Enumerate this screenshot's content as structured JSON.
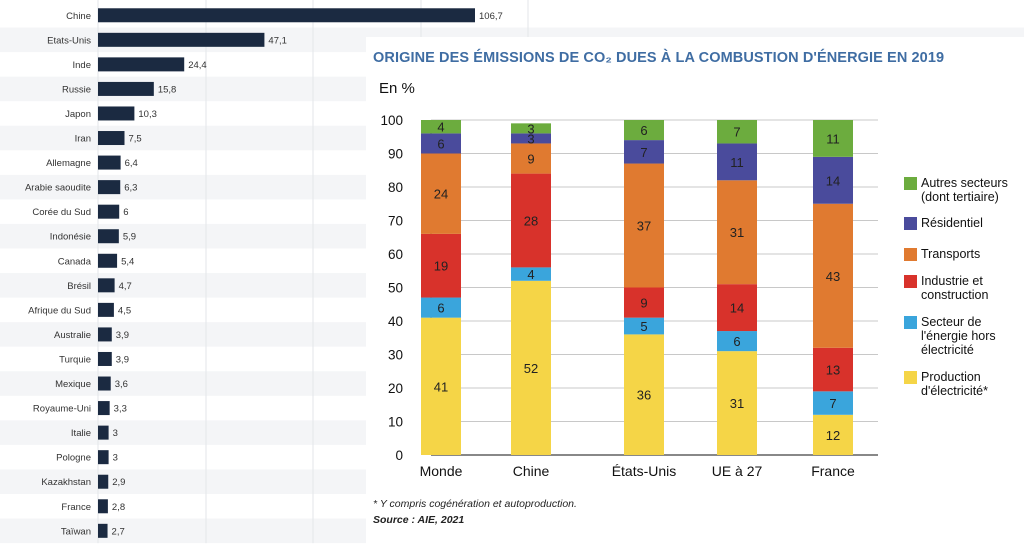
{
  "chart_data": [
    {
      "type": "bar",
      "orientation": "horizontal",
      "categories": [
        "Chine",
        "Etats-Unis",
        "Inde",
        "Russie",
        "Japon",
        "Iran",
        "Allemagne",
        "Arabie saoudite",
        "Corée du Sud",
        "Indonésie",
        "Canada",
        "Brésil",
        "Afrique du Sud",
        "Australie",
        "Turquie",
        "Mexique",
        "Royaume-Uni",
        "Italie",
        "Pologne",
        "Kazakhstan",
        "France",
        "Taïwan"
      ],
      "values": [
        106.7,
        47.1,
        24.4,
        15.8,
        10.3,
        7.5,
        6.4,
        6.3,
        6,
        5.9,
        5.4,
        4.7,
        4.5,
        3.9,
        3.9,
        3.6,
        3.3,
        3,
        3,
        2.9,
        2.8,
        2.7
      ],
      "value_labels": [
        "106,7",
        "47,1",
        "24,4",
        "15,8",
        "10,3",
        "7,5",
        "6,4",
        "6,3",
        "6",
        "5,9",
        "5,4",
        "4,7",
        "4,5",
        "3,9",
        "3,9",
        "3,6",
        "3,3",
        "3",
        "3",
        "2,9",
        "2,8",
        "2,7"
      ],
      "bar_color": "#1b2a41",
      "grid": true
    },
    {
      "type": "bar",
      "stacked": true,
      "title": "ORIGINE DES ÉMISSIONS DE CO₂ DUES À LA COMBUSTION D'ÉNERGIE EN 2019",
      "ylabel": "En %",
      "ylim": [
        0,
        100
      ],
      "yticks": [
        0,
        10,
        20,
        30,
        40,
        50,
        60,
        70,
        80,
        90,
        100
      ],
      "categories": [
        "Monde",
        "Chine",
        "États-Unis",
        "UE à 27",
        "France"
      ],
      "series": [
        {
          "name": "Production d'électricité*",
          "color": "#f5d547",
          "values": [
            41,
            52,
            36,
            31,
            12
          ]
        },
        {
          "name": "Secteur de l'énergie hors électricité",
          "color": "#3aa5dc",
          "values": [
            6,
            4,
            5,
            6,
            7
          ]
        },
        {
          "name": "Industrie et construction",
          "color": "#d8322b",
          "values": [
            19,
            28,
            9,
            14,
            13
          ]
        },
        {
          "name": "Transports",
          "color": "#e07a30",
          "values": [
            24,
            9,
            37,
            31,
            43
          ]
        },
        {
          "name": "Résidentiel",
          "color": "#4a4b9c",
          "values": [
            6,
            3,
            7,
            11,
            14
          ]
        },
        {
          "name": "Autres secteurs (dont tertiaire)",
          "color": "#6cac3e",
          "values": [
            4,
            3,
            6,
            7,
            11
          ]
        }
      ],
      "legend_position": "right",
      "footnote": "* Y compris cogénération et autoproduction.",
      "source": "Source : AIE, 2021"
    }
  ],
  "legend": [
    {
      "label": "Autres secteurs (dont tertiaire)",
      "color": "#6cac3e"
    },
    {
      "label": "Résidentiel",
      "color": "#4a4b9c"
    },
    {
      "label": "Transports",
      "color": "#e07a30"
    },
    {
      "label": "Industrie et construction",
      "color": "#d8322b"
    },
    {
      "label": "Secteur de l'énergie hors électricité",
      "color": "#3aa5dc"
    },
    {
      "label": "Production d'électricité*",
      "color": "#f5d547"
    }
  ]
}
